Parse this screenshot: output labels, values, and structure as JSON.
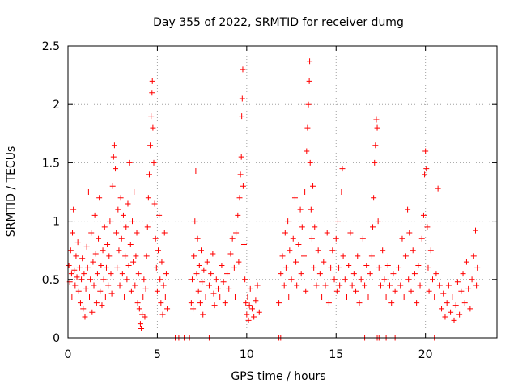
{
  "chart_data": {
    "type": "scatter",
    "title": "Day 355 of 2022, SRMTID for receiver dumg",
    "xlabel": "GPS time / hours",
    "ylabel": "SRMTID / TECUs",
    "xlim": [
      0,
      24
    ],
    "ylim": [
      0,
      2.5
    ],
    "x_ticks": [
      0,
      5,
      10,
      15,
      20
    ],
    "y_ticks": [
      0,
      0.5,
      1,
      1.5,
      2,
      2.5
    ],
    "x_tick_labels": [
      "0",
      "5",
      "10",
      "15",
      "20"
    ],
    "y_tick_labels": [
      "0",
      "0.5",
      "1",
      "1.5",
      "2",
      "2.5"
    ],
    "grid": true,
    "marker": "+",
    "series_color": "#ff0000",
    "series": [
      {
        "name": "SRMTID",
        "points": [
          [
            0.05,
            0.62
          ],
          [
            0.1,
            0.48
          ],
          [
            0.15,
            0.75
          ],
          [
            0.2,
            0.55
          ],
          [
            0.22,
            0.35
          ],
          [
            0.25,
            0.9
          ],
          [
            0.3,
            1.1
          ],
          [
            0.35,
            0.58
          ],
          [
            0.4,
            0.45
          ],
          [
            0.45,
            0.7
          ],
          [
            0.5,
            0.52
          ],
          [
            0.55,
            0.82
          ],
          [
            0.6,
            0.4
          ],
          [
            0.65,
            0.6
          ],
          [
            0.7,
            0.3
          ],
          [
            0.75,
            0.5
          ],
          [
            0.8,
            0.68
          ],
          [
            0.85,
            0.25
          ],
          [
            0.9,
            0.55
          ],
          [
            0.95,
            0.18
          ],
          [
            1.0,
            0.42
          ],
          [
            1.05,
            0.78
          ],
          [
            1.1,
            0.6
          ],
          [
            1.15,
            1.25
          ],
          [
            1.2,
            0.35
          ],
          [
            1.25,
            0.5
          ],
          [
            1.3,
            0.9
          ],
          [
            1.35,
            0.22
          ],
          [
            1.4,
            0.65
          ],
          [
            1.45,
            0.45
          ],
          [
            1.5,
            1.05
          ],
          [
            1.55,
            0.72
          ],
          [
            1.6,
            0.3
          ],
          [
            1.65,
            0.55
          ],
          [
            1.7,
            0.85
          ],
          [
            1.75,
            1.2
          ],
          [
            1.8,
            0.4
          ],
          [
            1.85,
            0.62
          ],
          [
            1.9,
            0.28
          ],
          [
            1.95,
            0.75
          ],
          [
            2.0,
            0.5
          ],
          [
            2.05,
            0.95
          ],
          [
            2.1,
            0.35
          ],
          [
            2.15,
            0.6
          ],
          [
            2.2,
            0.8
          ],
          [
            2.25,
            0.45
          ],
          [
            2.3,
            0.7
          ],
          [
            2.35,
            1.0
          ],
          [
            2.4,
            0.55
          ],
          [
            2.45,
            0.38
          ],
          [
            2.5,
            1.3
          ],
          [
            2.55,
            1.55
          ],
          [
            2.6,
            1.65
          ],
          [
            2.65,
            1.45
          ],
          [
            2.7,
            0.9
          ],
          [
            2.75,
            0.6
          ],
          [
            2.8,
            1.1
          ],
          [
            2.85,
            0.75
          ],
          [
            2.9,
            0.45
          ],
          [
            2.95,
            1.2
          ],
          [
            3.0,
            0.85
          ],
          [
            3.05,
            0.55
          ],
          [
            3.1,
            1.05
          ],
          [
            3.15,
            0.35
          ],
          [
            3.2,
            0.7
          ],
          [
            3.25,
            0.95
          ],
          [
            3.3,
            0.5
          ],
          [
            3.35,
            1.15
          ],
          [
            3.4,
            0.62
          ],
          [
            3.45,
            1.5
          ],
          [
            3.5,
            0.8
          ],
          [
            3.55,
            0.4
          ],
          [
            3.6,
            1.0
          ],
          [
            3.65,
            0.65
          ],
          [
            3.7,
            1.25
          ],
          [
            3.75,
            0.45
          ],
          [
            3.8,
            0.7
          ],
          [
            3.85,
            0.9
          ],
          [
            3.9,
            0.3
          ],
          [
            3.95,
            0.55
          ],
          [
            4.0,
            0.25
          ],
          [
            4.05,
            0.12
          ],
          [
            4.1,
            0.08
          ],
          [
            4.15,
            0.2
          ],
          [
            4.2,
            0.35
          ],
          [
            4.25,
            0.5
          ],
          [
            4.3,
            0.18
          ],
          [
            4.35,
            0.42
          ],
          [
            4.4,
            0.7
          ],
          [
            4.45,
            0.95
          ],
          [
            4.5,
            1.2
          ],
          [
            4.55,
            1.4
          ],
          [
            4.6,
            1.65
          ],
          [
            4.65,
            1.9
          ],
          [
            4.7,
            2.1
          ],
          [
            4.72,
            2.2
          ],
          [
            4.75,
            1.8
          ],
          [
            4.8,
            1.5
          ],
          [
            4.85,
            1.15
          ],
          [
            4.9,
            0.85
          ],
          [
            4.95,
            0.6
          ],
          [
            5.0,
            0.4
          ],
          [
            5.05,
            0.75
          ],
          [
            5.1,
            1.05
          ],
          [
            5.15,
            0.5
          ],
          [
            5.2,
            0.3
          ],
          [
            5.25,
            0.65
          ],
          [
            5.3,
            0.2
          ],
          [
            5.35,
            0.45
          ],
          [
            5.4,
            0.9
          ],
          [
            5.45,
            0.35
          ],
          [
            5.5,
            0.55
          ],
          [
            5.55,
            0.25
          ],
          [
            6.0,
            0.0
          ],
          [
            6.2,
            0.0
          ],
          [
            6.5,
            0.0
          ],
          [
            6.8,
            0.0
          ],
          [
            7.9,
            0.0
          ],
          [
            6.9,
            0.3
          ],
          [
            6.95,
            0.5
          ],
          [
            7.0,
            0.25
          ],
          [
            7.05,
            0.7
          ],
          [
            7.1,
            1.0
          ],
          [
            7.15,
            1.43
          ],
          [
            7.2,
            0.55
          ],
          [
            7.25,
            0.85
          ],
          [
            7.3,
            0.4
          ],
          [
            7.35,
            0.62
          ],
          [
            7.4,
            0.3
          ],
          [
            7.45,
            0.75
          ],
          [
            7.5,
            0.48
          ],
          [
            7.55,
            0.2
          ],
          [
            7.6,
            0.58
          ],
          [
            7.7,
            0.35
          ],
          [
            7.8,
            0.65
          ],
          [
            7.9,
            0.45
          ],
          [
            8.0,
            0.55
          ],
          [
            8.1,
            0.72
          ],
          [
            8.15,
            0.38
          ],
          [
            8.2,
            0.28
          ],
          [
            8.3,
            0.5
          ],
          [
            8.4,
            0.42
          ],
          [
            8.5,
            0.35
          ],
          [
            8.6,
            0.62
          ],
          [
            8.7,
            0.48
          ],
          [
            8.8,
            0.3
          ],
          [
            8.9,
            0.55
          ],
          [
            9.0,
            0.42
          ],
          [
            9.1,
            0.72
          ],
          [
            9.2,
            0.85
          ],
          [
            9.3,
            0.6
          ],
          [
            9.35,
            0.35
          ],
          [
            9.4,
            0.9
          ],
          [
            9.5,
            1.05
          ],
          [
            9.55,
            0.65
          ],
          [
            9.6,
            1.2
          ],
          [
            9.65,
            1.4
          ],
          [
            9.7,
            1.55
          ],
          [
            9.72,
            1.9
          ],
          [
            9.75,
            2.05
          ],
          [
            9.78,
            2.3
          ],
          [
            9.8,
            1.3
          ],
          [
            9.85,
            0.8
          ],
          [
            9.9,
            0.5
          ],
          [
            9.95,
            0.3
          ],
          [
            10.0,
            0.2
          ],
          [
            10.05,
            0.35
          ],
          [
            10.1,
            0.15
          ],
          [
            10.15,
            0.28
          ],
          [
            10.2,
            0.42
          ],
          [
            10.3,
            0.25
          ],
          [
            10.4,
            0.18
          ],
          [
            10.5,
            0.32
          ],
          [
            10.6,
            0.45
          ],
          [
            10.7,
            0.22
          ],
          [
            10.8,
            0.35
          ],
          [
            11.8,
            0.0
          ],
          [
            11.9,
            0.0
          ],
          [
            11.8,
            0.3
          ],
          [
            11.9,
            0.55
          ],
          [
            12.0,
            0.7
          ],
          [
            12.1,
            0.45
          ],
          [
            12.15,
            0.9
          ],
          [
            12.2,
            0.6
          ],
          [
            12.3,
            1.0
          ],
          [
            12.35,
            0.35
          ],
          [
            12.4,
            0.75
          ],
          [
            12.5,
            0.5
          ],
          [
            12.6,
            0.85
          ],
          [
            12.7,
            1.2
          ],
          [
            12.75,
            0.65
          ],
          [
            12.8,
            0.45
          ],
          [
            12.9,
            0.8
          ],
          [
            13.0,
            1.1
          ],
          [
            13.05,
            0.55
          ],
          [
            13.1,
            0.95
          ],
          [
            13.2,
            0.7
          ],
          [
            13.25,
            1.25
          ],
          [
            13.3,
            0.4
          ],
          [
            13.35,
            1.6
          ],
          [
            13.4,
            1.8
          ],
          [
            13.45,
            2.0
          ],
          [
            13.5,
            2.2
          ],
          [
            13.52,
            2.37
          ],
          [
            13.55,
            1.5
          ],
          [
            13.6,
            1.1
          ],
          [
            13.65,
            0.85
          ],
          [
            13.7,
            1.3
          ],
          [
            13.75,
            0.6
          ],
          [
            13.8,
            0.95
          ],
          [
            13.9,
            0.45
          ],
          [
            14.0,
            0.75
          ],
          [
            14.1,
            0.55
          ],
          [
            14.2,
            0.35
          ],
          [
            14.3,
            0.65
          ],
          [
            14.4,
            0.45
          ],
          [
            14.5,
            0.9
          ],
          [
            14.6,
            0.3
          ],
          [
            14.7,
            0.6
          ],
          [
            14.8,
            0.75
          ],
          [
            14.9,
            0.5
          ],
          [
            15.0,
            0.85
          ],
          [
            15.05,
            0.4
          ],
          [
            15.1,
            1.0
          ],
          [
            15.15,
            0.6
          ],
          [
            15.2,
            0.45
          ],
          [
            15.3,
            1.25
          ],
          [
            15.35,
            1.45
          ],
          [
            15.4,
            0.7
          ],
          [
            15.5,
            0.5
          ],
          [
            15.6,
            0.35
          ],
          [
            15.7,
            0.62
          ],
          [
            15.8,
            0.9
          ],
          [
            15.9,
            0.45
          ],
          [
            16.0,
            0.55
          ],
          [
            16.1,
            0.4
          ],
          [
            16.2,
            0.7
          ],
          [
            16.3,
            0.3
          ],
          [
            16.4,
            0.5
          ],
          [
            16.5,
            0.85
          ],
          [
            16.6,
            0.45
          ],
          [
            16.7,
            0.62
          ],
          [
            16.8,
            0.35
          ],
          [
            16.9,
            0.55
          ],
          [
            17.0,
            0.7
          ],
          [
            17.05,
            0.95
          ],
          [
            17.1,
            1.2
          ],
          [
            17.15,
            1.5
          ],
          [
            17.2,
            1.65
          ],
          [
            17.25,
            1.87
          ],
          [
            17.3,
            1.8
          ],
          [
            17.35,
            1.0
          ],
          [
            17.4,
            0.6
          ],
          [
            17.5,
            0.45
          ],
          [
            17.6,
            0.75
          ],
          [
            17.7,
            0.5
          ],
          [
            17.8,
            0.35
          ],
          [
            17.9,
            0.62
          ],
          [
            18.0,
            0.45
          ],
          [
            18.1,
            0.3
          ],
          [
            18.2,
            0.55
          ],
          [
            18.3,
            0.4
          ],
          [
            16.6,
            0.0
          ],
          [
            17.3,
            0.0
          ],
          [
            17.4,
            0.0
          ],
          [
            17.8,
            0.0
          ],
          [
            18.3,
            0.0
          ],
          [
            20.5,
            0.0
          ],
          [
            18.5,
            0.6
          ],
          [
            18.6,
            0.45
          ],
          [
            18.7,
            0.85
          ],
          [
            18.8,
            0.35
          ],
          [
            18.9,
            0.7
          ],
          [
            19.0,
            1.1
          ],
          [
            19.05,
            0.5
          ],
          [
            19.1,
            0.9
          ],
          [
            19.2,
            0.4
          ],
          [
            19.3,
            0.75
          ],
          [
            19.4,
            0.55
          ],
          [
            19.5,
            0.3
          ],
          [
            19.6,
            0.62
          ],
          [
            19.7,
            0.45
          ],
          [
            19.8,
            0.85
          ],
          [
            19.9,
            1.05
          ],
          [
            19.95,
            1.4
          ],
          [
            20.0,
            1.6
          ],
          [
            20.05,
            1.45
          ],
          [
            20.1,
            0.95
          ],
          [
            20.15,
            0.6
          ],
          [
            20.2,
            0.4
          ],
          [
            20.3,
            0.75
          ],
          [
            20.4,
            0.5
          ],
          [
            20.5,
            0.35
          ],
          [
            20.6,
            0.55
          ],
          [
            20.7,
            1.28
          ],
          [
            20.8,
            0.45
          ],
          [
            20.9,
            0.25
          ],
          [
            21.0,
            0.38
          ],
          [
            21.1,
            0.18
          ],
          [
            21.2,
            0.3
          ],
          [
            21.3,
            0.45
          ],
          [
            21.4,
            0.22
          ],
          [
            21.5,
            0.35
          ],
          [
            21.6,
            0.15
          ],
          [
            21.7,
            0.28
          ],
          [
            21.8,
            0.48
          ],
          [
            21.9,
            0.2
          ],
          [
            22.0,
            0.4
          ],
          [
            22.1,
            0.55
          ],
          [
            22.2,
            0.3
          ],
          [
            22.3,
            0.65
          ],
          [
            22.4,
            0.42
          ],
          [
            22.5,
            0.25
          ],
          [
            22.6,
            0.5
          ],
          [
            22.7,
            0.7
          ],
          [
            22.8,
            0.92
          ],
          [
            22.85,
            0.45
          ],
          [
            22.9,
            0.6
          ]
        ]
      }
    ]
  }
}
